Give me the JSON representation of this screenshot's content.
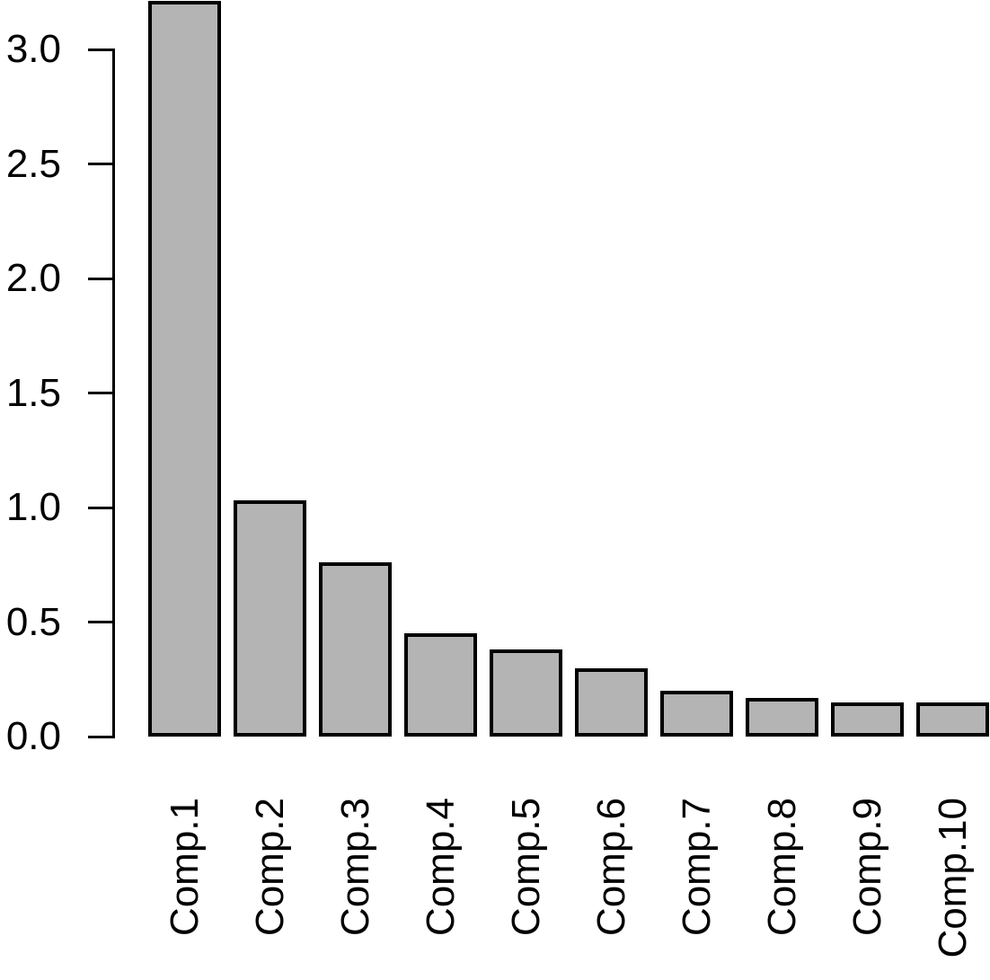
{
  "chart_data": {
    "type": "bar",
    "title": "",
    "xlabel": "",
    "ylabel": "",
    "categories": [
      "Comp.1",
      "Comp.2",
      "Comp.3",
      "Comp.4",
      "Comp.5",
      "Comp.6",
      "Comp.7",
      "Comp.8",
      "Comp.9",
      "Comp.10"
    ],
    "values": [
      3.21,
      1.03,
      0.76,
      0.45,
      0.38,
      0.3,
      0.2,
      0.17,
      0.15,
      0.15
    ],
    "ytick_values": [
      0.0,
      0.5,
      1.0,
      1.5,
      2.0,
      2.5,
      3.0
    ],
    "ytick_labels": [
      "0.0",
      "0.5",
      "1.0",
      "1.5",
      "2.0",
      "2.5",
      "3.0"
    ],
    "ylim": [
      0,
      3.25
    ],
    "grid": false,
    "legend": "none",
    "bar_fill_color": "#b4b4b4",
    "bar_border_color": "#000000",
    "axis_color": "#000000",
    "background_color": "#ffffff"
  }
}
